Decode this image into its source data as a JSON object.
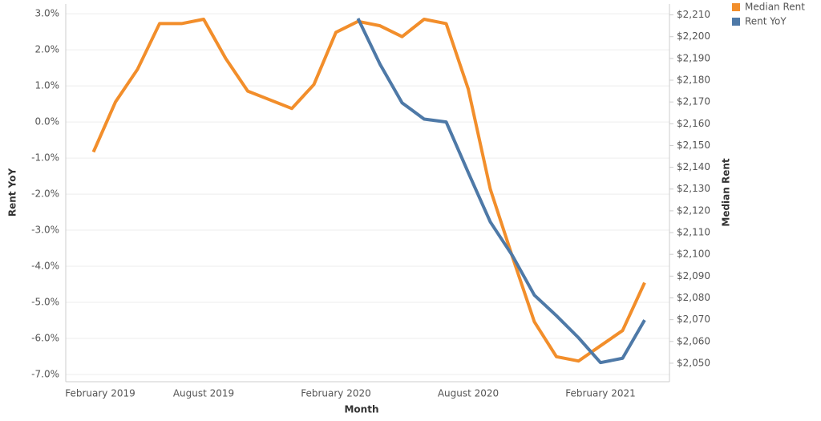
{
  "chart_data": {
    "type": "line",
    "x_label": "Month",
    "y_label": "Rent YoY",
    "y2_label": "Median Rent",
    "categories": [
      "February 2019",
      null,
      null,
      null,
      null,
      null,
      "August 2019",
      null,
      null,
      null,
      null,
      null,
      "February 2020",
      null,
      null,
      null,
      null,
      null,
      "August 2020",
      null,
      null,
      null,
      null,
      null,
      "February 2021",
      null,
      null
    ],
    "series": [
      {
        "name": "Median Rent",
        "color": "#f28e2b",
        "axis": "y2",
        "values": [
          null,
          2147,
          2170,
          2185,
          2206,
          2206,
          2208,
          2190,
          2175,
          2171,
          2167,
          2178,
          2202,
          2207,
          2205,
          2200,
          2208,
          2206,
          2176,
          2130,
          2099,
          2069,
          2053,
          2051,
          2058,
          2065,
          2087
        ]
      },
      {
        "name": "Rent YoY",
        "color": "#4e79a7",
        "values": [
          null,
          null,
          null,
          null,
          null,
          null,
          null,
          null,
          null,
          null,
          null,
          null,
          null,
          2.87,
          1.6,
          0.53,
          0.08,
          0.0,
          -1.4,
          -2.77,
          -3.7,
          -4.8,
          -5.37,
          -5.98,
          -6.67,
          -6.55,
          -5.49
        ]
      }
    ],
    "ylim": [
      -7.2,
      3.27
    ],
    "yticks": [
      {
        "value": 3,
        "label": "3.0%"
      },
      {
        "value": 2,
        "label": "2.0%"
      },
      {
        "value": 1,
        "label": "1.0%"
      },
      {
        "value": 0,
        "label": "0.0%"
      },
      {
        "value": -1,
        "label": "-1.0%"
      },
      {
        "value": -2,
        "label": "-2.0%"
      },
      {
        "value": -3,
        "label": "-3.0%"
      },
      {
        "value": -4,
        "label": "-4.0%"
      },
      {
        "value": -5,
        "label": "-5.0%"
      },
      {
        "value": -6,
        "label": "-6.0%"
      },
      {
        "value": -7,
        "label": "-7.0%"
      }
    ],
    "y2lim": [
      2041.5,
      2215
    ],
    "y2ticks": [
      {
        "value": 2210,
        "label": "$2,210"
      },
      {
        "value": 2200,
        "label": "$2,200"
      },
      {
        "value": 2190,
        "label": "$2,190"
      },
      {
        "value": 2180,
        "label": "$2,180"
      },
      {
        "value": 2170,
        "label": "$2,170"
      },
      {
        "value": 2160,
        "label": "$2,160"
      },
      {
        "value": 2150,
        "label": "$2,150"
      },
      {
        "value": 2140,
        "label": "$2,140"
      },
      {
        "value": 2130,
        "label": "$2,130"
      },
      {
        "value": 2120,
        "label": "$2,120"
      },
      {
        "value": 2110,
        "label": "$2,110"
      },
      {
        "value": 2100,
        "label": "$2,100"
      },
      {
        "value": 2090,
        "label": "$2,090"
      },
      {
        "value": 2080,
        "label": "$2,080"
      },
      {
        "value": 2070,
        "label": "$2,070"
      },
      {
        "value": 2060,
        "label": "$2,060"
      },
      {
        "value": 2050,
        "label": "$2,050"
      }
    ],
    "grid": true,
    "legend": "top-right"
  }
}
